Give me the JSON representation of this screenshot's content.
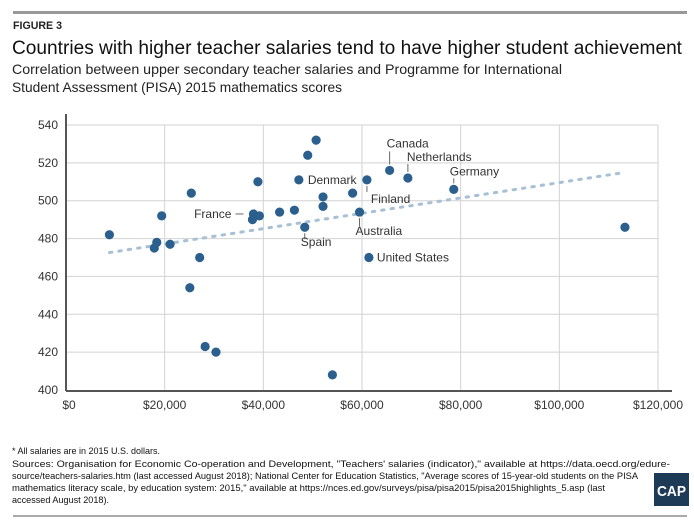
{
  "figure_label": "FIGURE 3",
  "title": "Countries with higher teacher salaries tend to have higher student achievement",
  "subtitle_lines": [
    "Correlation between upper secondary teacher salaries and Programme for International",
    "Student Assessment (PISA) 2015 mathematics scores"
  ],
  "footnote_lines": [
    "* All salaries are in 2015 U.S. dollars.",
    "Sources: Organisation for Economic Co-operation and Development, \"Teachers' salaries (indicator),\" available at https://data.oecd.org/edure-",
    "source/teachers-salaries.htm (last accessed August 2018); National Center for Education Statistics, \"Average scores of 15-year-old students on the PISA",
    "mathematics literacy scale, by education system: 2015,\" available at https://nces.ed.gov/surveys/pisa/pisa2015/pisa2015highlights_5.asp (last",
    "accessed August 2018)."
  ],
  "logo": {
    "text": "CAP",
    "color": "#1d3a57"
  },
  "colors": {
    "point": "#2b5f8e",
    "trend": "#a8c0d5",
    "grid": "#d2d2d2",
    "axis": "#555555",
    "rule": "#999999"
  },
  "chart_data": {
    "type": "scatter",
    "title": "Countries with higher teacher salaries tend to have higher student achievement",
    "xlabel": "",
    "ylabel": "",
    "xlim": [
      0,
      120000
    ],
    "ylim": [
      400,
      540
    ],
    "x_ticks": [
      0,
      20000,
      40000,
      60000,
      80000,
      100000,
      120000
    ],
    "x_tick_labels": [
      "$0",
      "$20,000",
      "$40,000",
      "$60,000",
      "$80,000",
      "$100,000",
      "$120,000"
    ],
    "y_ticks": [
      400,
      420,
      440,
      460,
      480,
      500,
      520,
      540
    ],
    "y_tick_labels": [
      "400",
      "420",
      "440",
      "460",
      "480",
      "500",
      "520",
      "540"
    ],
    "grid": true,
    "points": [
      {
        "x": 8800,
        "y": 482,
        "label": ""
      },
      {
        "x": 17900,
        "y": 475,
        "label": ""
      },
      {
        "x": 18400,
        "y": 478,
        "label": ""
      },
      {
        "x": 19400,
        "y": 492,
        "label": ""
      },
      {
        "x": 21100,
        "y": 477,
        "label": ""
      },
      {
        "x": 25400,
        "y": 504,
        "label": ""
      },
      {
        "x": 25100,
        "y": 454,
        "label": ""
      },
      {
        "x": 27100,
        "y": 470,
        "label": ""
      },
      {
        "x": 28200,
        "y": 423,
        "label": ""
      },
      {
        "x": 30400,
        "y": 420,
        "label": ""
      },
      {
        "x": 38000,
        "y": 493,
        "label": "France"
      },
      {
        "x": 37800,
        "y": 490,
        "label": ""
      },
      {
        "x": 39200,
        "y": 492,
        "label": ""
      },
      {
        "x": 38900,
        "y": 510,
        "label": ""
      },
      {
        "x": 43300,
        "y": 494,
        "label": ""
      },
      {
        "x": 46300,
        "y": 495,
        "label": ""
      },
      {
        "x": 47200,
        "y": 511,
        "label": "Denmark"
      },
      {
        "x": 48400,
        "y": 486,
        "label": "Spain"
      },
      {
        "x": 49000,
        "y": 524,
        "label": ""
      },
      {
        "x": 50700,
        "y": 532,
        "label": ""
      },
      {
        "x": 52100,
        "y": 502,
        "label": ""
      },
      {
        "x": 52100,
        "y": 497,
        "label": ""
      },
      {
        "x": 54000,
        "y": 408,
        "label": ""
      },
      {
        "x": 58100,
        "y": 504,
        "label": ""
      },
      {
        "x": 59500,
        "y": 494,
        "label": "Australia"
      },
      {
        "x": 61000,
        "y": 511,
        "label": "Finland"
      },
      {
        "x": 61400,
        "y": 470,
        "label": "United States"
      },
      {
        "x": 65600,
        "y": 516,
        "label": "Canada"
      },
      {
        "x": 69300,
        "y": 512,
        "label": "Netherlands"
      },
      {
        "x": 78600,
        "y": 506,
        "label": "Germany"
      },
      {
        "x": 113300,
        "y": 486,
        "label": ""
      }
    ],
    "trendline": {
      "style": "dotted",
      "x": [
        8800,
        112900
      ],
      "y": [
        472.6,
        514.8
      ]
    }
  }
}
